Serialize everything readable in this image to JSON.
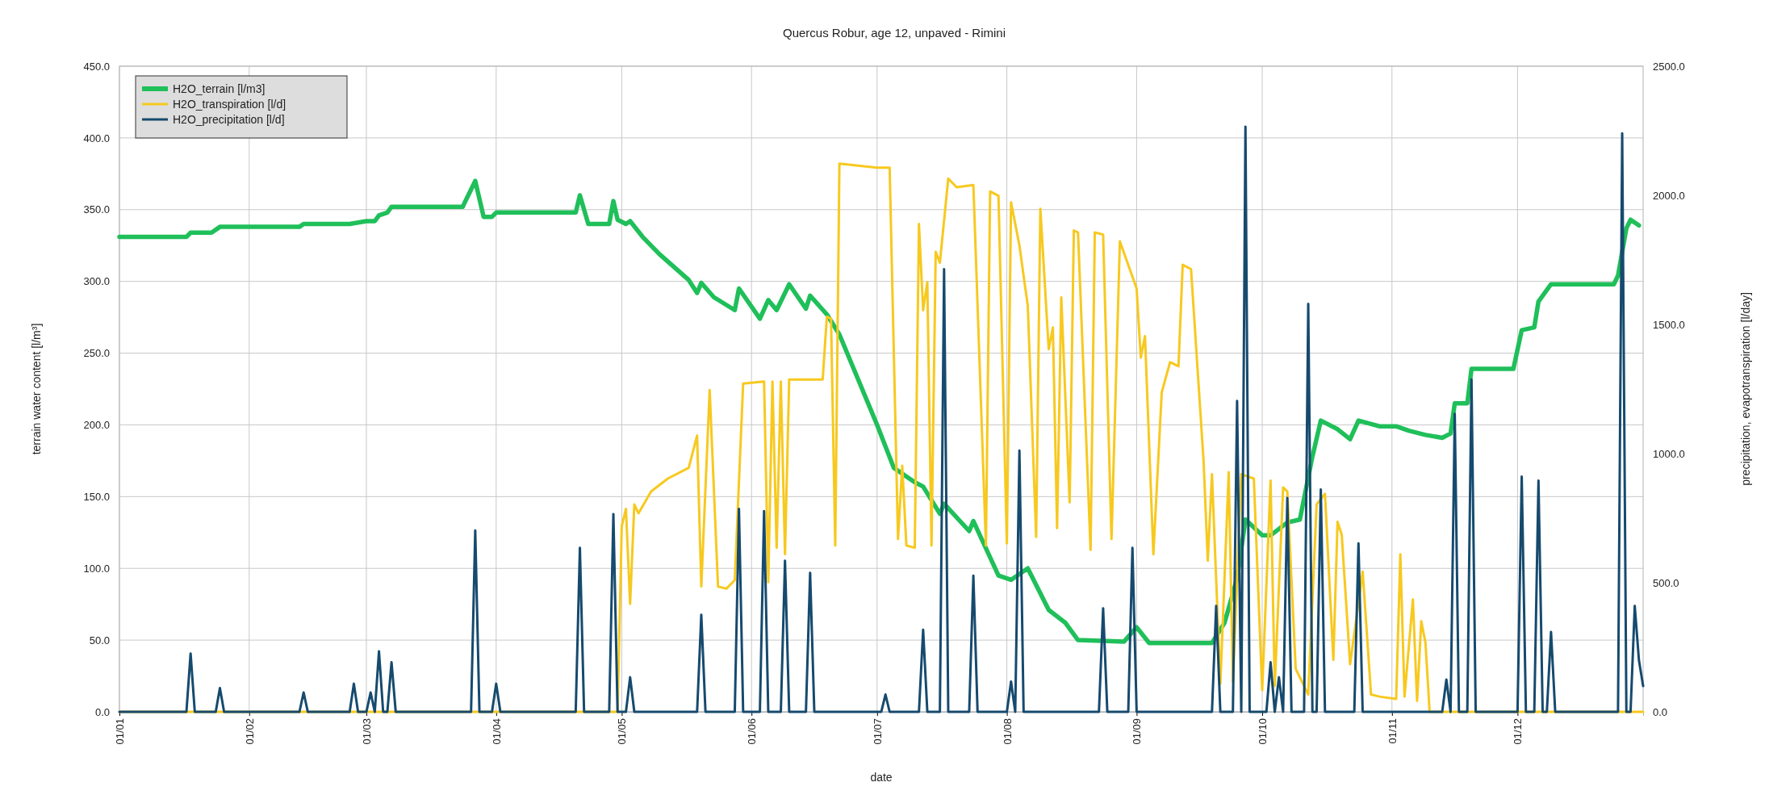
{
  "chart_data": {
    "type": "line",
    "title": "Quercus Robur, age 12, unpaved - Rimini",
    "xlabel": "date",
    "ylabel": "terrain water content [l/m³]",
    "y2label": "precipitation, evapotranspiration [l/day]",
    "xlim": [
      "--01-01",
      "--12-31"
    ],
    "xticks": [
      {
        "value": "--01-01",
        "label": "01/01"
      },
      {
        "value": "--02-01",
        "label": "01/02"
      },
      {
        "value": "--03-01",
        "label": "01/03"
      },
      {
        "value": "--04-01",
        "label": "01/04"
      },
      {
        "value": "--05-01",
        "label": "01/05"
      },
      {
        "value": "--06-01",
        "label": "01/06"
      },
      {
        "value": "--07-01",
        "label": "01/07"
      },
      {
        "value": "--08-01",
        "label": "01/08"
      },
      {
        "value": "--09-01",
        "label": "01/09"
      },
      {
        "value": "--10-01",
        "label": "01/10"
      },
      {
        "value": "--11-01",
        "label": "01/11"
      },
      {
        "value": "--12-01",
        "label": "01/12"
      }
    ],
    "ylim": [
      0,
      450
    ],
    "yticks": [
      {
        "value": 0,
        "label": "0.0"
      },
      {
        "value": 50,
        "label": "50.0"
      },
      {
        "value": 100,
        "label": "100.0"
      },
      {
        "value": 150,
        "label": "150.0"
      },
      {
        "value": 200,
        "label": "200.0"
      },
      {
        "value": 250,
        "label": "250.0"
      },
      {
        "value": 300,
        "label": "300.0"
      },
      {
        "value": 350,
        "label": "350.0"
      },
      {
        "value": 400,
        "label": "400.0"
      },
      {
        "value": 450,
        "label": "450.0"
      }
    ],
    "y2lim": [
      0,
      2500
    ],
    "y2ticks": [
      {
        "value": 0,
        "label": "0.0"
      },
      {
        "value": 500,
        "label": "500.0"
      },
      {
        "value": 1000,
        "label": "1000.0"
      },
      {
        "value": 1500,
        "label": "1500.0"
      },
      {
        "value": 2000,
        "label": "2000.0"
      },
      {
        "value": 2500,
        "label": "2500.0"
      }
    ],
    "grid": true,
    "legend": "top left",
    "marker": "none",
    "series": [
      {
        "name": "H2O_terrain [l/m3]",
        "color": "#1fbf5a",
        "x": [
          "--01-01",
          "--01-17",
          "--01-18",
          "--01-23",
          "--01-25",
          "--02-13",
          "--02-14",
          "--02-25",
          "--02-27",
          "--03-01",
          "--03-03",
          "--03-04",
          "--03-06",
          "--03-07",
          "--03-24",
          "--03-25",
          "--03-27",
          "--03-29",
          "--03-31",
          "--04-01",
          "--04-20",
          "--04-21",
          "--04-23",
          "--04-28",
          "--04-29",
          "--04-30",
          "--05-02",
          "--05-03",
          "--05-06",
          "--05-10",
          "--05-17",
          "--05-19",
          "--05-20",
          "--05-23",
          "--05-28",
          "--05-29",
          "--06-03",
          "--06-05",
          "--06-07",
          "--06-10",
          "--06-14",
          "--06-15",
          "--06-19",
          "--06-22",
          "--07-01",
          "--07-05",
          "--07-10",
          "--07-12",
          "--07-16",
          "--07-17",
          "--07-23",
          "--07-24",
          "--07-30",
          "--08-02",
          "--08-06",
          "--08-11",
          "--08-15",
          "--08-18",
          "--08-29",
          "--09-01",
          "--09-04",
          "--09-19",
          "--09-22",
          "--09-25",
          "--09-27",
          "--10-01",
          "--10-03",
          "--10-07",
          "--10-10",
          "--10-13",
          "--10-15",
          "--10-19",
          "--10-22",
          "--10-24",
          "--10-29",
          "--11-02",
          "--11-05",
          "--11-09",
          "--11-13",
          "--11-15",
          "--11-16",
          "--11-19",
          "--11-20",
          "--11-30",
          "--12-02",
          "--12-05",
          "--12-06",
          "--12-09",
          "--12-24",
          "--12-25",
          "--12-27",
          "--12-28",
          "--12-30"
        ],
        "values": [
          331,
          331,
          334,
          334,
          338,
          338,
          340,
          340,
          341,
          342,
          342,
          346,
          348,
          352,
          352,
          358,
          370,
          345,
          345,
          348,
          348,
          360,
          340,
          340,
          356,
          343,
          340,
          342,
          331,
          319,
          301,
          292,
          299,
          289,
          280,
          295,
          274,
          287,
          280,
          298,
          281,
          290,
          277,
          263,
          200,
          170,
          160,
          157,
          138,
          145,
          126,
          133,
          95,
          92,
          100,
          71,
          62,
          50,
          49,
          59,
          48,
          48,
          62,
          93,
          134,
          123,
          123,
          132,
          134,
          178,
          203,
          197,
          190,
          203,
          199,
          199,
          196,
          193,
          191,
          194,
          215,
          215,
          239,
          239,
          266,
          268,
          286,
          298,
          298,
          304,
          337,
          343,
          339
        ]
      },
      {
        "name": "H2O_transpiration [l/d]",
        "color": "#f7c91f",
        "axis": "y2",
        "x": [
          "--01-01",
          "--04-30",
          "--05-01",
          "--05-02",
          "--05-03",
          "--05-04",
          "--05-05",
          "--05-08",
          "--05-12",
          "--05-17",
          "--05-19",
          "--05-20",
          "--05-22",
          "--05-24",
          "--05-26",
          "--05-28",
          "--05-30",
          "--06-04",
          "--06-05",
          "--06-06",
          "--06-07",
          "--06-08",
          "--06-09",
          "--06-10",
          "--06-18",
          "--06-19",
          "--06-20",
          "--06-21",
          "--06-22",
          "--07-01",
          "--07-04",
          "--07-06",
          "--07-07",
          "--07-08",
          "--07-10",
          "--07-11",
          "--07-12",
          "--07-13",
          "--07-14",
          "--07-15",
          "--07-16",
          "--07-18",
          "--07-20",
          "--07-24",
          "--07-27",
          "--07-28",
          "--07-30",
          "--08-01",
          "--08-02",
          "--08-04",
          "--08-06",
          "--08-08",
          "--08-09",
          "--08-11",
          "--08-12",
          "--08-13",
          "--08-14",
          "--08-16",
          "--08-17",
          "--08-18",
          "--08-21",
          "--08-22",
          "--08-24",
          "--08-26",
          "--08-28",
          "--09-01",
          "--09-02",
          "--09-03",
          "--09-05",
          "--09-07",
          "--09-09",
          "--09-11",
          "--09-12",
          "--09-14",
          "--09-17",
          "--09-18",
          "--09-19",
          "--09-21",
          "--09-23",
          "--09-24",
          "--09-26",
          "--09-29",
          "--10-01",
          "--10-03",
          "--10-04",
          "--10-06",
          "--10-07",
          "--10-09",
          "--10-12",
          "--10-14",
          "--10-16",
          "--10-18",
          "--10-19",
          "--10-20",
          "--10-22",
          "--10-25",
          "--10-27",
          "--10-29",
          "--11-02",
          "--11-03",
          "--11-04",
          "--11-06",
          "--11-07",
          "--11-08",
          "--11-09",
          "--11-10",
          "--12-31"
        ],
        "values": [
          0,
          0,
          719,
          786,
          418,
          803,
          769,
          853,
          903,
          945,
          1070,
          485,
          1246,
          485,
          477,
          510,
          1271,
          1279,
          502,
          1279,
          635,
          1279,
          610,
          1287,
          1287,
          1530,
          1522,
          644,
          2123,
          2107,
          2107,
          669,
          953,
          644,
          635,
          1889,
          1555,
          1664,
          644,
          1781,
          1739,
          2065,
          2031,
          2040,
          644,
          2015,
          1998,
          652,
          1973,
          1806,
          1572,
          677,
          1948,
          1404,
          1488,
          711,
          1605,
          811,
          1864,
          1856,
          627,
          1856,
          1848,
          669,
          1822,
          1639,
          1371,
          1455,
          610,
          1237,
          1354,
          1338,
          1731,
          1714,
          970,
          585,
          920,
          109,
          928,
          117,
          920,
          903,
          84,
          895,
          100,
          869,
          853,
          167,
          67,
          803,
          844,
          201,
          736,
          686,
          184,
          543,
          67,
          59,
          50,
          610,
          59,
          435,
          42,
          351,
          268,
          0,
          0
        ]
      },
      {
        "name": "H2O_precipitation [l/d]",
        "color": "#164a6e",
        "axis": "y2",
        "x": [
          "--01-01",
          "--01-17",
          "--01-18",
          "--01-19",
          "--01-24",
          "--01-25",
          "--01-26",
          "--02-13",
          "--02-14",
          "--02-15",
          "--02-25",
          "--02-26",
          "--02-27",
          "--03-01",
          "--03-02",
          "--03-03",
          "--03-04",
          "--03-05",
          "--03-06",
          "--03-07",
          "--03-08",
          "--03-26",
          "--03-27",
          "--03-28",
          "--03-31",
          "--04-01",
          "--04-02",
          "--04-20",
          "--04-21",
          "--04-22",
          "--04-28",
          "--04-29",
          "--04-30",
          "--05-02",
          "--05-03",
          "--05-04",
          "--05-19",
          "--05-20",
          "--05-21",
          "--05-28",
          "--05-29",
          "--05-30",
          "--06-03",
          "--06-04",
          "--06-05",
          "--06-08",
          "--06-09",
          "--06-10",
          "--06-14",
          "--06-15",
          "--06-16",
          "--07-02",
          "--07-03",
          "--07-04",
          "--07-11",
          "--07-12",
          "--07-13",
          "--07-16",
          "--07-17",
          "--07-18",
          "--07-23",
          "--07-24",
          "--07-25",
          "--08-01",
          "--08-02",
          "--08-03",
          "--08-04",
          "--08-05",
          "--08-23",
          "--08-24",
          "--08-25",
          "--08-30",
          "--08-31",
          "--09-01",
          "--09-19",
          "--09-20",
          "--09-21",
          "--09-24",
          "--09-25",
          "--09-26",
          "--09-27",
          "--09-28",
          "--10-02",
          "--10-03",
          "--10-04",
          "--10-05",
          "--10-06",
          "--10-07",
          "--10-08",
          "--10-11",
          "--10-12",
          "--10-13",
          "--10-14",
          "--10-15",
          "--10-16",
          "--10-23",
          "--10-24",
          "--10-25",
          "--11-13",
          "--11-14",
          "--11-15",
          "--11-16",
          "--11-17",
          "--11-19",
          "--11-20",
          "--11-21",
          "--12-01",
          "--12-02",
          "--12-03",
          "--12-05",
          "--12-06",
          "--12-07",
          "--12-08",
          "--12-09",
          "--12-10",
          "--12-25",
          "--12-26",
          "--12-27",
          "--12-28",
          "--12-29",
          "--12-30",
          "--12-31"
        ],
        "values": [
          0,
          0,
          226,
          0,
          0,
          92,
          0,
          0,
          75,
          0,
          0,
          109,
          0,
          0,
          75,
          0,
          234,
          0,
          0,
          192,
          0,
          0,
          702,
          0,
          0,
          109,
          0,
          0,
          635,
          0,
          0,
          766,
          0,
          0,
          134,
          0,
          0,
          376,
          0,
          0,
          786,
          0,
          0,
          777,
          0,
          0,
          585,
          0,
          0,
          538,
          0,
          0,
          67,
          0,
          0,
          318,
          0,
          0,
          1714,
          0,
          0,
          527,
          0,
          0,
          117,
          0,
          1012,
          0,
          0,
          401,
          0,
          0,
          635,
          0,
          0,
          410,
          0,
          0,
          1204,
          0,
          2266,
          0,
          0,
          192,
          0,
          134,
          0,
          828,
          0,
          0,
          1580,
          0,
          0,
          861,
          0,
          0,
          652,
          0,
          0,
          125,
          0,
          1154,
          0,
          0,
          1287,
          0,
          0,
          911,
          0,
          0,
          895,
          0,
          0,
          309,
          0,
          0,
          2240,
          0,
          0,
          410,
          200,
          100
        ]
      }
    ]
  }
}
